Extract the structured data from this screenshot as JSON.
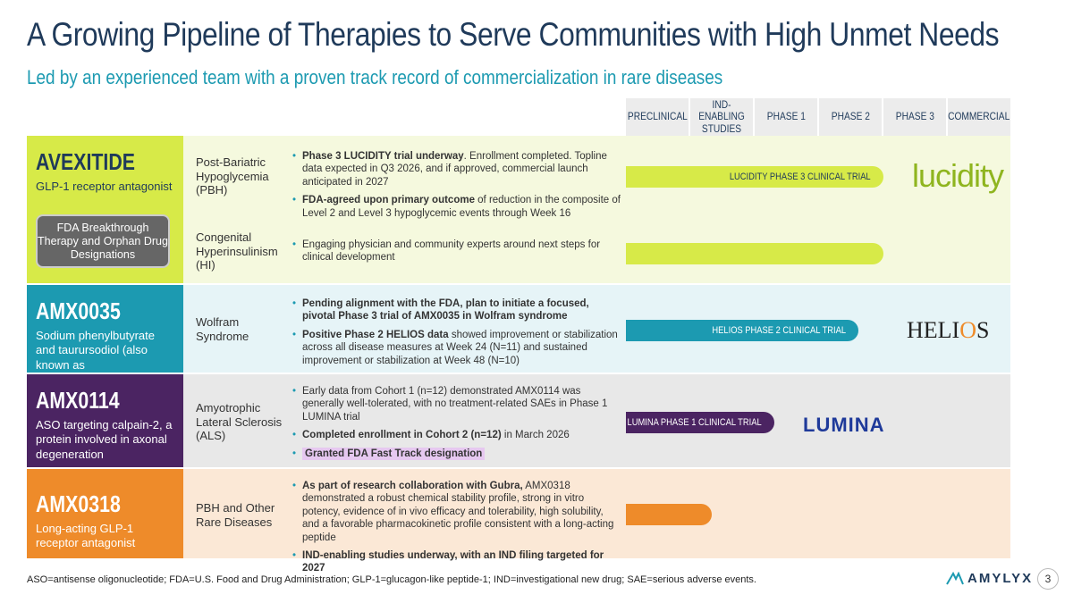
{
  "header": {
    "title": "A Growing Pipeline of Therapies to Serve Communities with High Unmet Needs",
    "subtitle": "Led by an experienced team with a proven track record of commercialization in rare diseases"
  },
  "phases": [
    "PRECLINICAL",
    "IND-ENABLING STUDIES",
    "PHASE 1",
    "PHASE 2",
    "PHASE 3",
    "COMMERCIAL"
  ],
  "programs": [
    {
      "drug": "AVEXITIDE",
      "desc": "GLP-1 receptor antagonist",
      "badge": "FDA Breakthrough Therapy and Orphan Drug Designations",
      "color": "#d7ea48",
      "indications": [
        {
          "name": "Post-Bariatric Hypoglycemia (PBH)",
          "bullets": [
            {
              "bold": "Phase 3 LUCIDITY trial underway",
              "rest": ". Enrollment completed. Topline data expected in Q3 2026, and if approved, commercial launch anticipated in 2027"
            },
            {
              "bold": "FDA-agreed upon primary outcome",
              "rest": " of reduction in the composite of Level 2 and Level 3 hypoglycemic events through Week 16"
            }
          ],
          "bar_label": "LUCIDITY PHASE 3 CLINICAL TRIAL",
          "bar_phase_end": 5,
          "logo": "lucidity"
        },
        {
          "name": "Congenital Hyperinsulinism (HI)",
          "bullets": [
            {
              "bold": "",
              "rest": "Engaging physician and community experts around next steps for clinical development"
            }
          ],
          "bar_label": "",
          "bar_phase_end": 5
        }
      ]
    },
    {
      "drug": "AMX0035",
      "desc": "Sodium phenylbutyrate and taurursodiol (also known as ursodoxicoltaurine)",
      "color": "#1c9ab1",
      "indications": [
        {
          "name": "Wolfram Syndrome",
          "bullets": [
            {
              "bold": "Pending alignment with the FDA, plan to initiate a focused, pivotal Phase 3 trial of AMX0035 in Wolfram syndrome",
              "rest": ""
            },
            {
              "bold": "Positive Phase 2 HELIOS data",
              "rest": " showed improvement or stabilization across all disease measures at Week 24 (N=11) and sustained improvement or stabilization at Week 48 (N=10)"
            }
          ],
          "bar_label": "HELIOS PHASE 2 CLINICAL TRIAL",
          "bar_phase_end": 4,
          "logo": "HELIOS"
        }
      ]
    },
    {
      "drug": "AMX0114",
      "desc": "ASO targeting calpain-2, a protein involved in axonal degeneration",
      "color": "#4b2462",
      "indications": [
        {
          "name": "Amyotrophic Lateral Sclerosis (ALS)",
          "bullets": [
            {
              "bold": "",
              "rest": "Early data from Cohort 1 (n=12) demonstrated AMX0114 was generally well-tolerated, with no treatment-related SAEs in Phase 1 LUMINA trial"
            },
            {
              "bold": "Completed enrollment in Cohort 2 (n=12)",
              "rest": " in March 2026"
            },
            {
              "bold": "Granted FDA Fast Track designation",
              "rest": ""
            }
          ],
          "bar_label": "LUMINA PHASE 1 CLINICAL TRIAL",
          "bar_phase_end": 3,
          "logo": "LUMINA"
        }
      ]
    },
    {
      "drug": "AMX0318",
      "desc": "Long-acting GLP-1 receptor antagonist",
      "color": "#ee8b2a",
      "indications": [
        {
          "name": "PBH and Other Rare Diseases",
          "bullets": [
            {
              "bold": "As part of research collaboration with Gubra,",
              "rest": " AMX0318 demonstrated a robust chemical stability profile, strong in vitro potency, evidence of in vivo efficacy and tolerability, high solubility, and a favorable pharmacokinetic profile consistent with a long-acting peptide"
            },
            {
              "bold": "IND-enabling studies underway, with an IND filing targeted for 2027",
              "rest": ""
            }
          ],
          "bar_label": "",
          "bar_phase_end": 2
        }
      ]
    }
  ],
  "footer": {
    "footnote": "ASO=antisense oligonucleotide; FDA=U.S. Food and Drug Administration; GLP-1=glucagon-like peptide-1; IND=investigational new drug; SAE=serious adverse events.",
    "company": "AMYLYX",
    "page": "3"
  },
  "colors": {
    "navy": "#1f3a5a",
    "teal": "#1c9ab1",
    "lime": "#d7ea48",
    "purple": "#4b2462",
    "orange": "#ee8b2a"
  }
}
